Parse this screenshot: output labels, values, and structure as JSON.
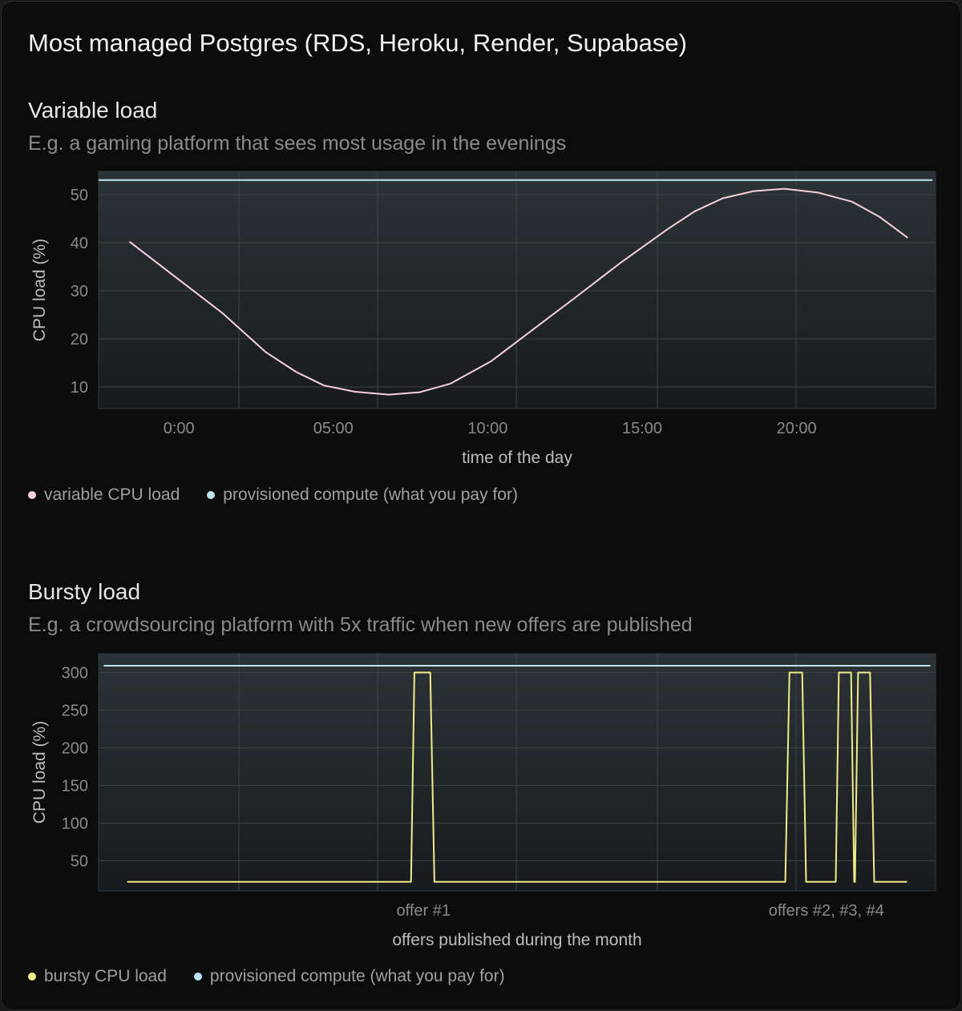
{
  "title": "Most managed Postgres (RDS, Heroku, Render, Supabase)",
  "colors": {
    "background": "#0c0c0c",
    "variable": "#f7d2dc",
    "provisioned": "#b9e6f0",
    "bursty": "#f0ec8a"
  },
  "chart_data": [
    {
      "type": "line",
      "title": "Variable load",
      "subtitle": "E.g. a gaming platform that sees most usage in the evenings",
      "xlabel": "time of the day",
      "ylabel": "CPU load (%)",
      "xticks": [
        {
          "label": "0:00",
          "value": 0
        },
        {
          "label": "05:00",
          "value": 5
        },
        {
          "label": "10:00",
          "value": 10
        },
        {
          "label": "15:00",
          "value": 15
        },
        {
          "label": "20:00",
          "value": 20
        }
      ],
      "yticks": [
        10,
        20,
        30,
        40,
        50
      ],
      "ylim": [
        5.5,
        54.8
      ],
      "xlim": [
        -2.6,
        24.5
      ],
      "grid": true,
      "legend_position": "bottom-left",
      "series": [
        {
          "name": "variable CPU load",
          "color": "#f7d2dc",
          "x": [
            -1.6,
            0,
            1.4,
            2.8,
            3.8,
            4.7,
            5.7,
            6.8,
            7.8,
            8.8,
            10.1,
            11.5,
            12.9,
            14.3,
            15.8,
            16.7,
            17.6,
            18.6,
            19.6,
            20.7,
            21.8,
            22.7,
            23.6
          ],
          "y": [
            40.2,
            32.3,
            25.4,
            17.3,
            13.1,
            10.3,
            9.0,
            8.4,
            8.9,
            10.7,
            15.3,
            22.1,
            28.9,
            35.8,
            42.7,
            46.5,
            49.2,
            50.7,
            51.2,
            50.4,
            48.5,
            45.3,
            41.0
          ]
        },
        {
          "name": "provisioned compute (what you pay for)",
          "color": "#b9e6f0",
          "constant": 53,
          "xrange": [
            -2.6,
            24.4
          ]
        }
      ]
    },
    {
      "type": "line",
      "title": "Bursty load",
      "subtitle": "E.g. a crowdsourcing platform with 5x traffic when new offers are published",
      "xlabel": "offers published during the month",
      "ylabel": "CPU load (%)",
      "xticks": [
        {
          "label": "offer #1",
          "value": 11.4
        },
        {
          "label": "offers #2, #3, #4",
          "value": 26.9
        }
      ],
      "yticks": [
        50,
        100,
        150,
        200,
        250,
        300
      ],
      "ylim": [
        10,
        325
      ],
      "xlim": [
        -1.1,
        31.1
      ],
      "grid": true,
      "legend_position": "bottom-left",
      "series": [
        {
          "name": "bursty CPU load",
          "color": "#f0ec8a",
          "x": [
            0,
            10.92,
            11.05,
            11.66,
            11.82,
            25.32,
            25.48,
            25.97,
            26.12,
            27.26,
            27.38,
            27.85,
            27.97,
            28.0,
            28.12,
            28.58,
            28.74,
            30
          ],
          "y": [
            22,
            22,
            300,
            300,
            22,
            22,
            300,
            300,
            22,
            22,
            300,
            300,
            22,
            22,
            300,
            300,
            22,
            22
          ]
        },
        {
          "name": "provisioned compute (what you pay for)",
          "color": "#b9e6f0",
          "constant": 309,
          "xrange": [
            -0.9,
            30.9
          ]
        }
      ]
    }
  ]
}
